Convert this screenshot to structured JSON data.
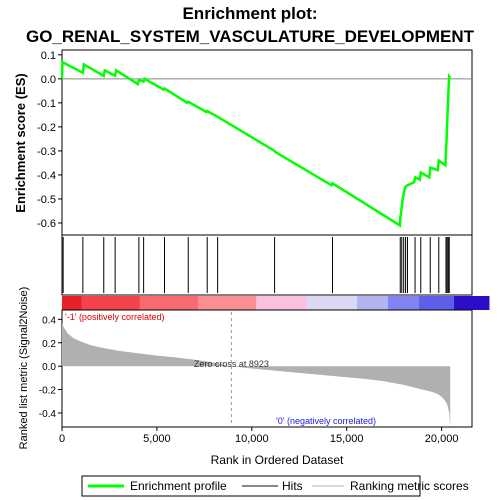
{
  "chart_data": {
    "type": "line",
    "title_line1": "Enrichment plot:",
    "title_line2": "GO_RENAL_SYSTEM_VASCULATURE_DEVELOPMENT",
    "es_panel": {
      "ylabel": "Enrichment score (ES)",
      "ylim": [
        -0.65,
        0.12
      ],
      "yticks": [
        "0.1",
        "0.0",
        "-0.1",
        "-0.2",
        "-0.3",
        "-0.4",
        "-0.5",
        "-0.6"
      ],
      "ytick_values": [
        0.1,
        0.0,
        -0.1,
        -0.2,
        -0.3,
        -0.4,
        -0.5,
        -0.6
      ],
      "series": [
        {
          "name": "Enrichment profile",
          "color": "#00ff00",
          "x": [
            0,
            20,
            1100,
            1150,
            2200,
            2250,
            2800,
            2850,
            4000,
            4050,
            4300,
            4350,
            5350,
            5400,
            6600,
            6650,
            7600,
            7650,
            8200,
            11200,
            11250,
            14200,
            14250,
            17800,
            17820,
            17870,
            17900,
            17950,
            18000,
            18050,
            18100,
            18150,
            18550,
            18600,
            18850,
            18900,
            19350,
            19400,
            19800,
            19850,
            20200,
            20230,
            20260,
            20290,
            20320,
            20350,
            20380,
            20400,
            20450
          ],
          "y": [
            0.0,
            0.07,
            0.025,
            0.06,
            0.012,
            0.035,
            0.013,
            0.035,
            -0.022,
            -0.005,
            -0.012,
            0.0,
            -0.045,
            -0.04,
            -0.1,
            -0.095,
            -0.138,
            -0.134,
            -0.158,
            -0.3,
            -0.305,
            -0.443,
            -0.435,
            -0.61,
            -0.58,
            -0.55,
            -0.53,
            -0.5,
            -0.48,
            -0.46,
            -0.45,
            -0.445,
            -0.43,
            -0.41,
            -0.42,
            -0.39,
            -0.41,
            -0.37,
            -0.38,
            -0.34,
            -0.36,
            -0.3,
            -0.25,
            -0.19,
            -0.13,
            -0.07,
            -0.02,
            0.01,
            0.005
          ]
        }
      ]
    },
    "hits": [
      60,
      1100,
      2200,
      2800,
      4050,
      4300,
      5400,
      6650,
      7650,
      8200,
      11200,
      14250,
      17820,
      17900,
      18000,
      18100,
      18200,
      18600,
      18900,
      19400,
      19850,
      20230,
      20290,
      20350,
      20400
    ],
    "color_bar": {
      "segments": [
        {
          "color": "#e8202a",
          "fraction": 0.05
        },
        {
          "color": "#f2434a",
          "fraction": 0.15
        },
        {
          "color": "#f96a70",
          "fraction": 0.15
        },
        {
          "color": "#fb8e92",
          "fraction": 0.15
        },
        {
          "color": "#fbbfe0",
          "fraction": 0.13
        },
        {
          "color": "#dbd8f4",
          "fraction": 0.13
        },
        {
          "color": "#b4b3f2",
          "fraction": 0.08
        },
        {
          "color": "#8284f2",
          "fraction": 0.08
        },
        {
          "color": "#5e5ee8",
          "fraction": 0.09
        },
        {
          "color": "#2b0fc8",
          "fraction": 0.09
        }
      ]
    },
    "metric_panel": {
      "ylabel": "Ranked list metric (Signal2Noise)",
      "ylim": [
        -0.52,
        0.48
      ],
      "yticks": [
        "0.4",
        "0.2",
        "0.0",
        "-0.2",
        "-0.4"
      ],
      "ytick_values": [
        0.4,
        0.2,
        0.0,
        -0.2,
        -0.4
      ],
      "fill_color": "#b0b0b0",
      "x": [
        0,
        100,
        300,
        600,
        1000,
        1500,
        2000,
        3000,
        4000,
        5000,
        6000,
        7000,
        8000,
        8923,
        10000,
        11000,
        12000,
        13000,
        14000,
        15000,
        16000,
        17000,
        18000,
        18500,
        19000,
        19500,
        19800,
        20000,
        20200,
        20300,
        20400,
        20450
      ],
      "y": [
        0.36,
        0.33,
        0.28,
        0.24,
        0.21,
        0.18,
        0.16,
        0.13,
        0.11,
        0.09,
        0.075,
        0.055,
        0.03,
        0.0,
        -0.02,
        -0.035,
        -0.05,
        -0.065,
        -0.08,
        -0.095,
        -0.11,
        -0.13,
        -0.16,
        -0.18,
        -0.2,
        -0.22,
        -0.24,
        -0.26,
        -0.3,
        -0.33,
        -0.4,
        -0.52
      ],
      "pos_label": "'-1' (positively correlated)",
      "neg_label": "'0' (negatively correlated)",
      "zero_cross_label": "Zero cross at 8923",
      "zero_cross": 8923
    },
    "xaxis": {
      "label": "Rank in Ordered Dataset",
      "xlim": [
        0,
        21600
      ],
      "ticks": [
        "0",
        "5,000",
        "10,000",
        "15,000",
        "20,000"
      ],
      "tick_values": [
        0,
        5000,
        10000,
        15000,
        20000
      ]
    },
    "legend": {
      "placement": "bottom",
      "items": [
        {
          "label": "Enrichment profile",
          "color": "#00ff00"
        },
        {
          "label": "Hits",
          "color": "#888888"
        },
        {
          "label": "Ranking metric scores",
          "color": "#d8d8d8"
        }
      ]
    }
  }
}
